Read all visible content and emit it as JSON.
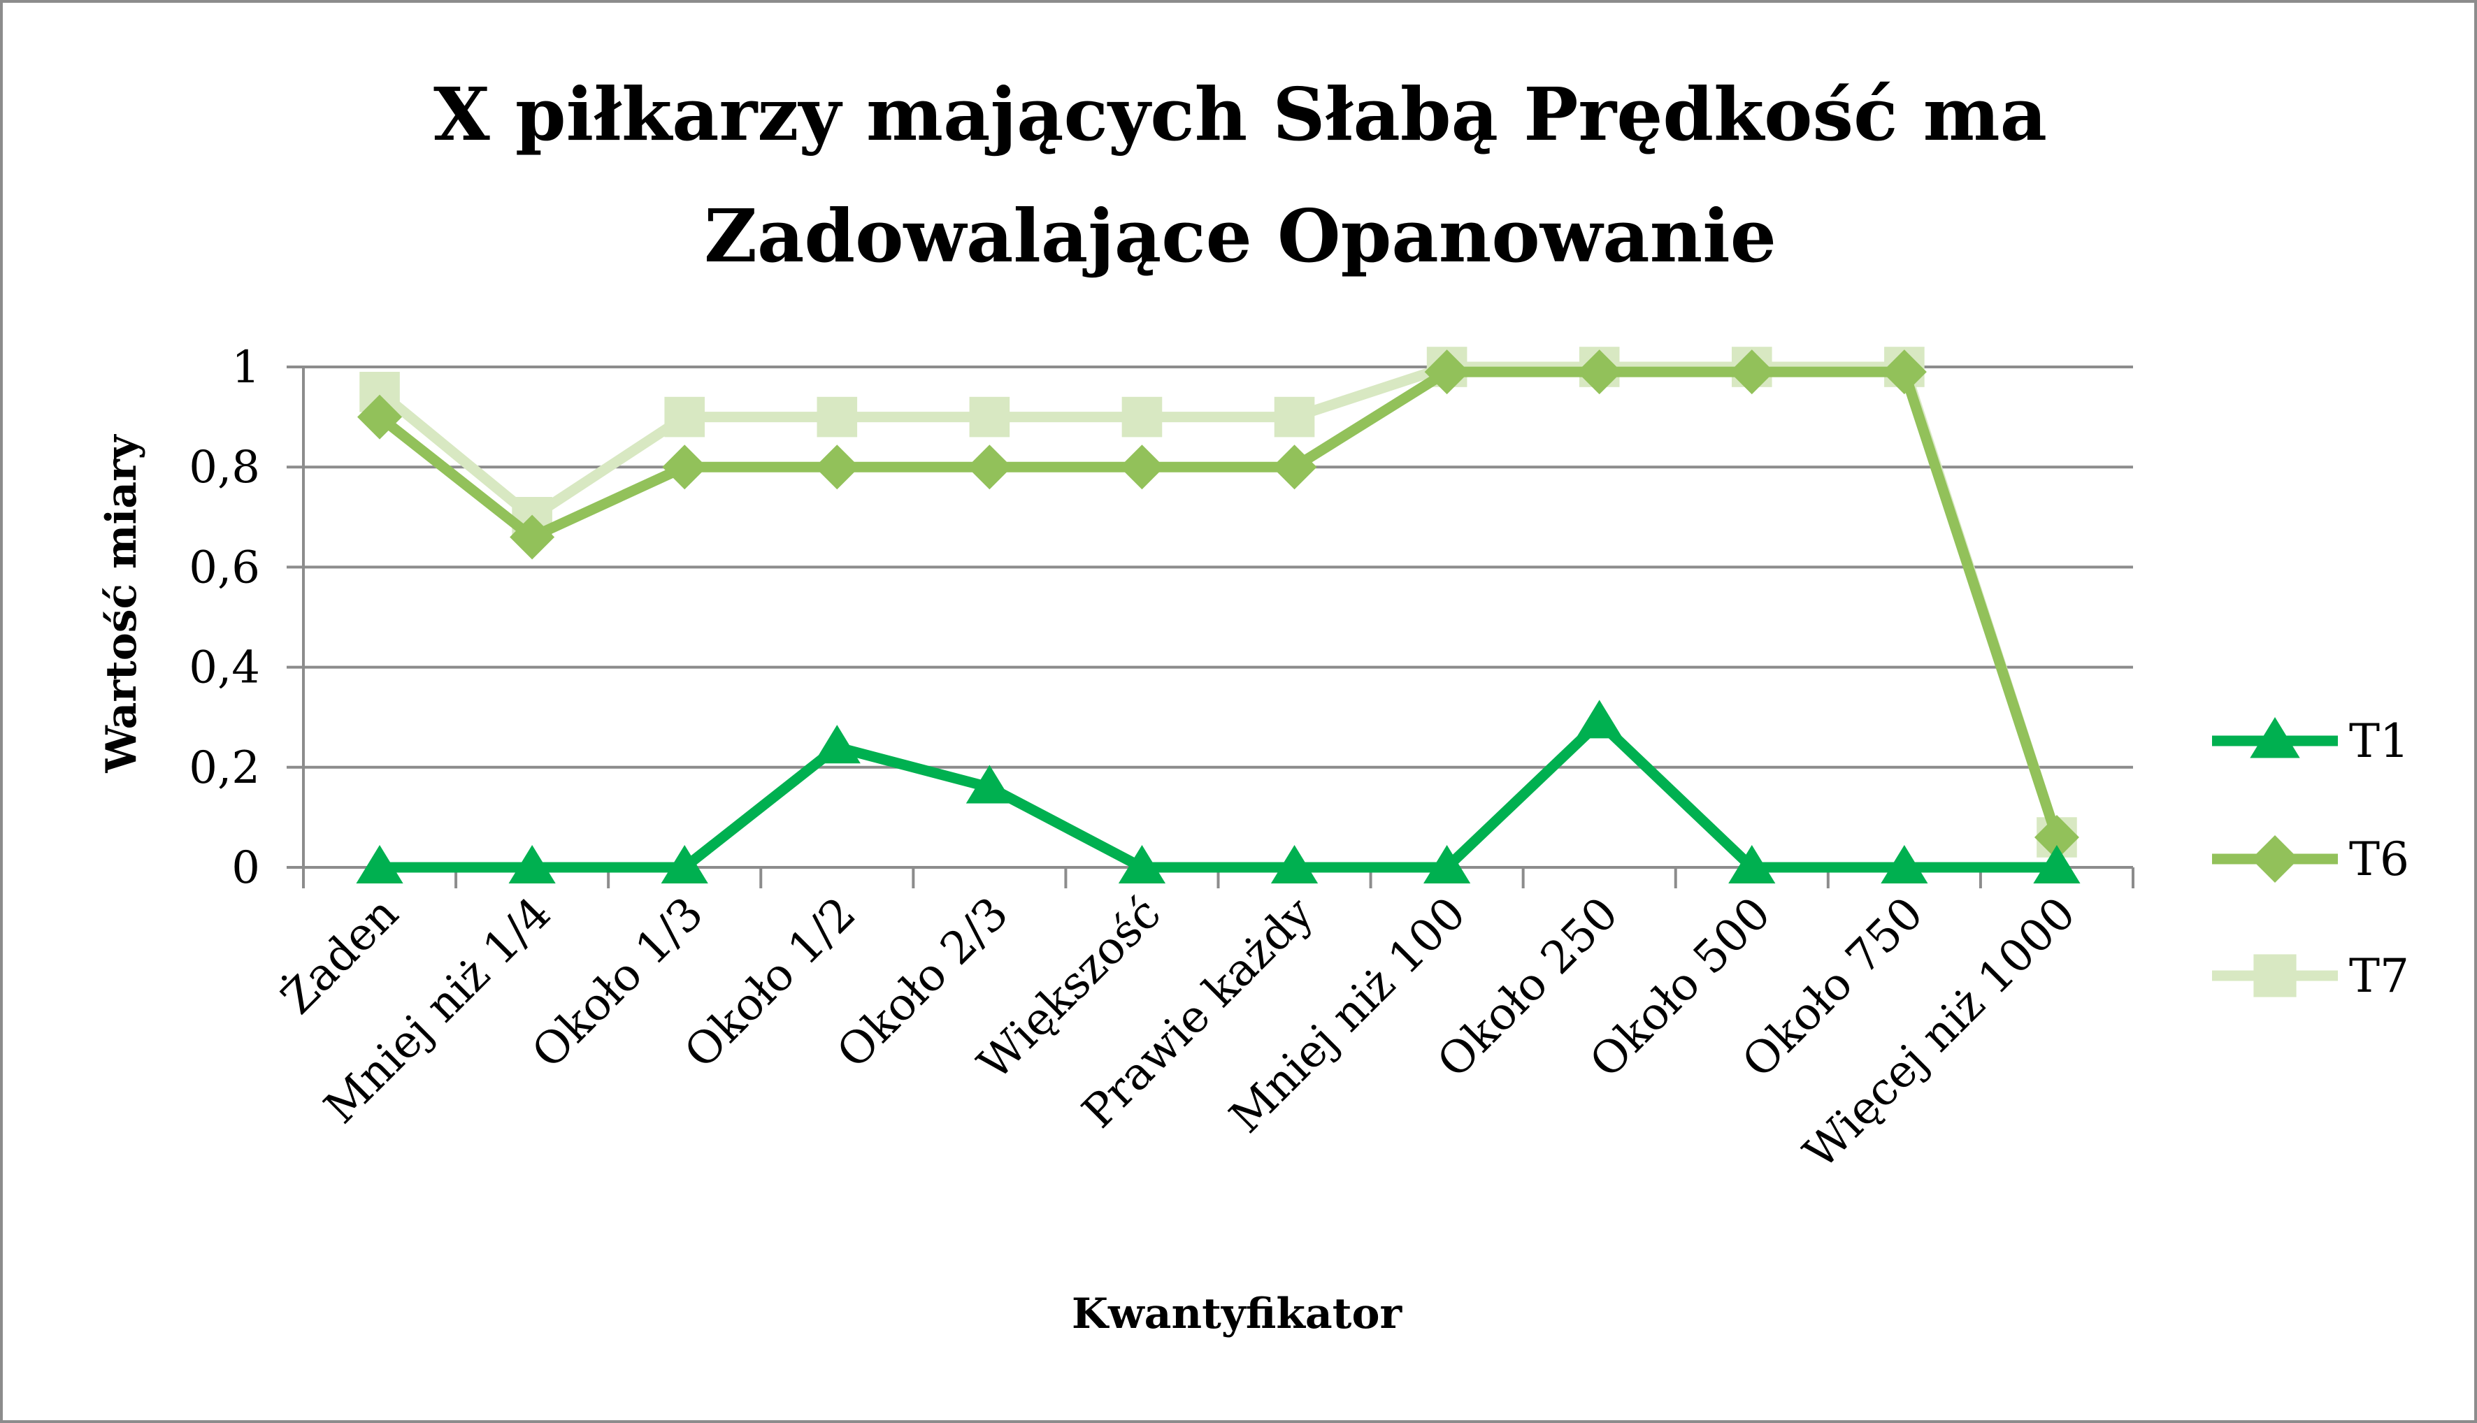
{
  "chart_data": {
    "type": "line",
    "title_lines": [
      "X piłkarzy mających Słabą Prędkość ma",
      "Zadowalające Opanowanie"
    ],
    "xlabel": "Kwantyfikator",
    "ylabel": "Wartość miary",
    "ylim": [
      0,
      1
    ],
    "yticks": [
      0,
      0.2,
      0.4,
      0.6,
      0.8,
      1
    ],
    "ytick_labels": [
      "0",
      "0,2",
      "0,4",
      "0,6",
      "0,8",
      "1"
    ],
    "grid": "horizontal",
    "legend_position": "right",
    "categories": [
      "Żaden",
      "Mniej niż 1/4",
      "Około 1/3",
      "Około 1/2",
      "Około 2/3",
      "Większość",
      "Prawie każdy",
      "Mniej niż 100",
      "Około 250",
      "Około 500",
      "Około 750",
      "Więcej niż 1000"
    ],
    "series": [
      {
        "name": "T1",
        "color": "#00b050",
        "marker": "triangle",
        "values": [
          0,
          0,
          0,
          0.24,
          0.16,
          0,
          0,
          0,
          0.29,
          0,
          0,
          0
        ]
      },
      {
        "name": "T6",
        "color": "#92c15a",
        "marker": "diamond",
        "values": [
          0.9,
          0.66,
          0.8,
          0.8,
          0.8,
          0.8,
          0.8,
          0.99,
          0.99,
          0.99,
          0.99,
          0.06
        ]
      },
      {
        "name": "T7",
        "color": "#d8e8c2",
        "marker": "square",
        "values": [
          0.95,
          0.7,
          0.9,
          0.9,
          0.9,
          0.9,
          0.9,
          1.0,
          1.0,
          1.0,
          1.0,
          0.06
        ]
      }
    ]
  }
}
